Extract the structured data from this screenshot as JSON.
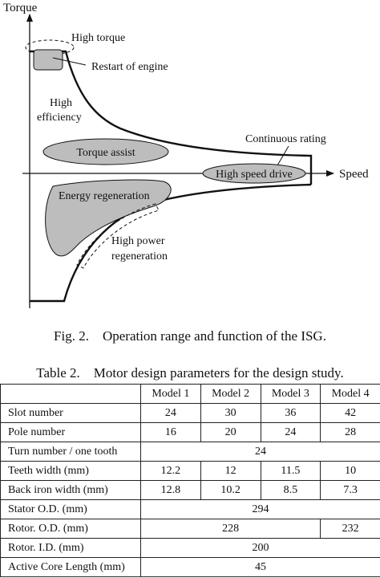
{
  "figure": {
    "axis_y_label": "Torque",
    "axis_x_label": "Speed",
    "labels": {
      "high_torque": "High torque",
      "restart_engine": "Restart of engine",
      "high_efficiency_1": "High",
      "high_efficiency_2": "efficiency",
      "torque_assist": "Torque assist",
      "continuous_rating": "Continuous rating",
      "high_speed_drive": "High speed drive",
      "energy_regeneration": "Energy regeneration",
      "high_power_regen_1": "High power",
      "high_power_regen_2": "regeneration"
    },
    "caption": "Fig. 2.    Operation range and function of the ISG."
  },
  "table": {
    "caption": "Table 2.    Motor design parameters for the design study.",
    "models": [
      "Model 1",
      "Model 2",
      "Model 3",
      "Model 4"
    ],
    "slot_number": {
      "label": "Slot number",
      "values": [
        "24",
        "30",
        "36",
        "42"
      ]
    },
    "pole_number": {
      "label": "Pole number",
      "values": [
        "16",
        "20",
        "24",
        "28"
      ]
    },
    "turn_number": {
      "label": "Turn number / one tooth",
      "value": "24"
    },
    "teeth_width": {
      "label": "Teeth width (mm)",
      "values": [
        "12.2",
        "12",
        "11.5",
        "10"
      ]
    },
    "back_iron_width": {
      "label": "Back iron width (mm)",
      "values": [
        "12.8",
        "10.2",
        "8.5",
        "7.3"
      ]
    },
    "stator_od": {
      "label": "Stator O.D. (mm)",
      "value": "294"
    },
    "rotor_od": {
      "label": "Rotor. O.D. (mm)",
      "value_m1_m3": "228",
      "value_m4": "232"
    },
    "rotor_id": {
      "label": "Rotor. I.D. (mm)",
      "value": "200"
    },
    "active_core_length": {
      "label": "Active Core Length (mm)",
      "value": "45"
    }
  }
}
